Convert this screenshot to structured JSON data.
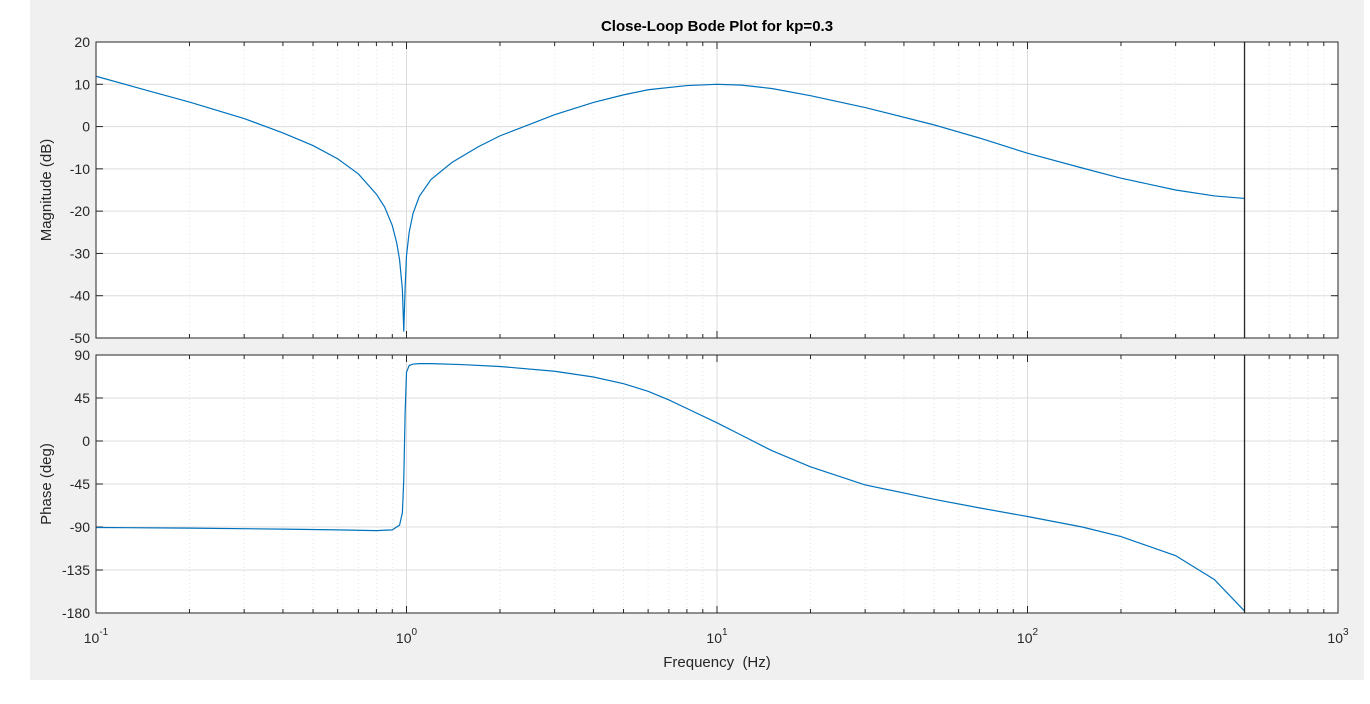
{
  "figure": {
    "background": "#f0f0f0",
    "axes_background": "#ffffff",
    "line_color": "#0072bd",
    "marker_line_color": "#262626"
  },
  "chart_data": [
    {
      "type": "line",
      "title": "Close-Loop Bode Plot for kp=0.3",
      "ylabel": "Magnitude (dB)",
      "xlabel": "",
      "xscale": "log",
      "xlim": [
        0.1,
        1000
      ],
      "ylim": [
        -50,
        20
      ],
      "yticks": [
        -50,
        -40,
        -30,
        -20,
        -10,
        0,
        10,
        20
      ],
      "ytick_labels": [
        "-50",
        "-40",
        "-30",
        "-20",
        "-10",
        "0",
        "10",
        "20"
      ],
      "grid": true,
      "minor_grid": true,
      "vertical_line_x": 500,
      "series": [
        {
          "x": [
            0.1,
            0.15,
            0.2,
            0.3,
            0.4,
            0.5,
            0.6,
            0.7,
            0.8,
            0.85,
            0.9,
            0.93,
            0.95,
            0.97,
            0.98,
            0.99,
            1.0,
            1.02,
            1.05,
            1.1,
            1.2,
            1.4,
            1.7,
            2,
            3,
            4,
            5,
            6,
            8,
            10,
            12,
            15,
            20,
            30,
            50,
            70,
            100,
            150,
            200,
            300,
            400,
            500
          ],
          "y": [
            11.9,
            8.3,
            5.8,
            1.9,
            -1.5,
            -4.5,
            -7.6,
            -11.2,
            -16.0,
            -19.0,
            -23.4,
            -27.5,
            -31.5,
            -38.5,
            -48.5,
            -38.0,
            -30.5,
            -25.0,
            -20.5,
            -16.5,
            -12.5,
            -8.5,
            -4.8,
            -2.2,
            2.8,
            5.7,
            7.5,
            8.7,
            9.7,
            10.0,
            9.8,
            9.0,
            7.3,
            4.5,
            0.4,
            -2.7,
            -6.3,
            -9.8,
            -12.2,
            -15.0,
            -16.4,
            -17.0
          ]
        }
      ]
    },
    {
      "type": "line",
      "title": "",
      "ylabel": "Phase (deg)",
      "xlabel": "Frequency  (Hz)",
      "xscale": "log",
      "xlim": [
        0.1,
        1000
      ],
      "ylim": [
        -180,
        90
      ],
      "yticks": [
        -180,
        -135,
        -90,
        -45,
        0,
        45,
        90
      ],
      "ytick_labels": [
        "-180",
        "-135",
        "-90",
        "-45",
        "0",
        "45",
        "90"
      ],
      "xticks": [
        0.1,
        1,
        10,
        100,
        1000
      ],
      "xtick_labels": [
        {
          "base": "10",
          "exp": "-1"
        },
        {
          "base": "10",
          "exp": "0"
        },
        {
          "base": "10",
          "exp": "1"
        },
        {
          "base": "10",
          "exp": "2"
        },
        {
          "base": "10",
          "exp": "3"
        }
      ],
      "grid": true,
      "minor_grid": true,
      "vertical_line_x": 500,
      "series": [
        {
          "x": [
            0.1,
            0.2,
            0.4,
            0.6,
            0.8,
            0.9,
            0.95,
            0.97,
            0.98,
            0.99,
            1.0,
            1.02,
            1.05,
            1.1,
            1.2,
            1.5,
            2,
            3,
            4,
            5,
            6,
            7,
            8,
            10,
            12,
            15,
            20,
            30,
            50,
            70,
            100,
            150,
            200,
            300,
            400,
            500
          ],
          "y": [
            -90.5,
            -91.2,
            -92.2,
            -93.0,
            -93.8,
            -93.0,
            -88.0,
            -75.0,
            -40.0,
            30.0,
            72.0,
            79.0,
            80.5,
            81.0,
            81.0,
            80.0,
            78.0,
            73.0,
            67.0,
            60.0,
            52.0,
            43.0,
            34.0,
            19.0,
            6.0,
            -10.0,
            -27.0,
            -46.0,
            -61.0,
            -70.0,
            -79.0,
            -90.0,
            -100.0,
            -120.0,
            -145.0,
            -178.0
          ]
        }
      ]
    }
  ]
}
